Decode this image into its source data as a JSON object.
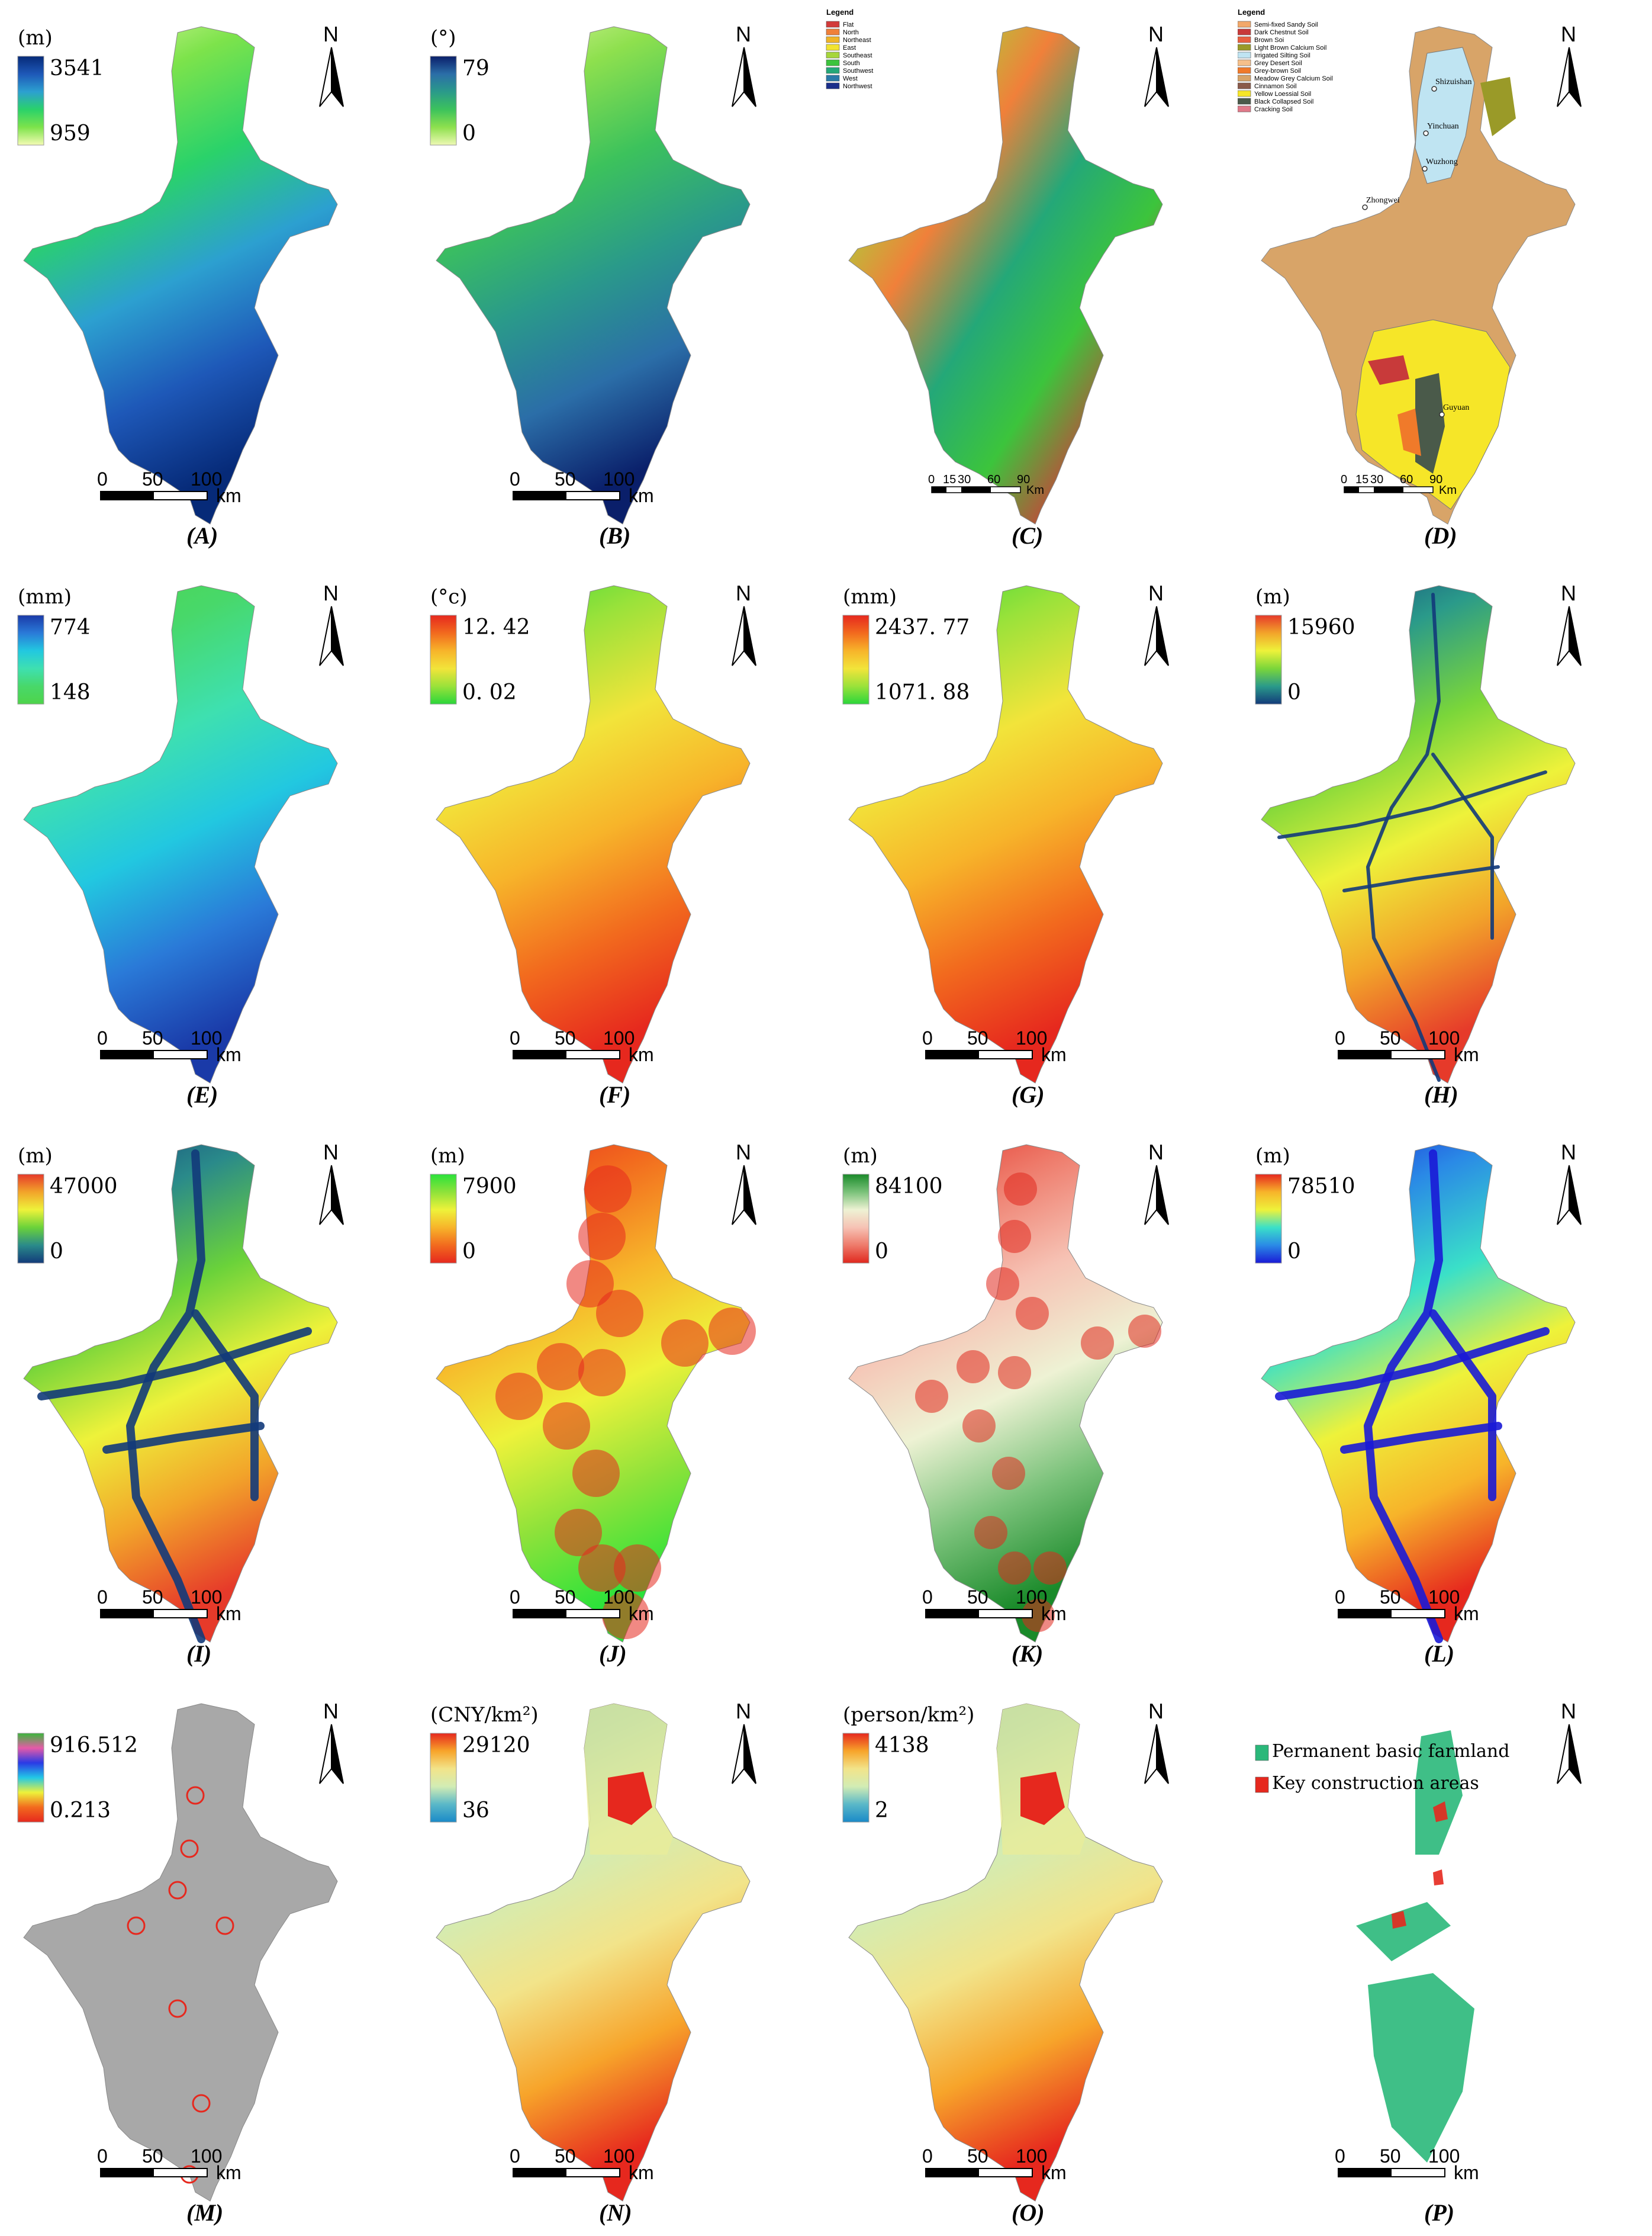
{
  "north_label": "N",
  "scale_km": "km",
  "scale_km_cap": "Km",
  "scale_ticks_a": [
    "0",
    "50",
    "100"
  ],
  "scale_ticks_b": [
    "0",
    "15",
    "30",
    "60",
    "90"
  ],
  "colors": {
    "text": "#000000",
    "boundary": "#777777"
  },
  "panels": [
    {
      "id": "A",
      "label": "(A)",
      "unit": "(m)",
      "max": "3541",
      "min": "959",
      "stops": [
        "#062a78",
        "#1e58b8",
        "#2ca0d0",
        "#2ad26a",
        "#7de34b",
        "#f4fbb4"
      ]
    },
    {
      "id": "B",
      "label": "(B)",
      "unit": "(°)",
      "max": "79",
      "min": "0",
      "stops": [
        "#0a1f6a",
        "#2b6ea8",
        "#2a9a8a",
        "#3cc25c",
        "#8ee04e",
        "#eef9b4"
      ]
    },
    {
      "id": "C",
      "label": "(C)",
      "legend_title": "Legend",
      "legend": [
        {
          "name": "Flat",
          "color": "#d23a3a"
        },
        {
          "name": "North",
          "color": "#f0803a"
        },
        {
          "name": "Northeast",
          "color": "#f0b428"
        },
        {
          "name": "East",
          "color": "#f2e430"
        },
        {
          "name": "Southeast",
          "color": "#a6d63a"
        },
        {
          "name": "South",
          "color": "#3cc43c"
        },
        {
          "name": "Southwest",
          "color": "#24a878"
        },
        {
          "name": "West",
          "color": "#2a7aa8"
        },
        {
          "name": "Northwest",
          "color": "#1a2e8a"
        }
      ]
    },
    {
      "id": "D",
      "label": "(D)",
      "legend_title": "Legend",
      "legend": [
        {
          "name": "Semi-fixed Sandy Soil",
          "color": "#f2a86a"
        },
        {
          "name": "Dark Chestnut Soil",
          "color": "#c83a3a"
        },
        {
          "name": "Brown Soi",
          "color": "#e86040"
        },
        {
          "name": "Light Brown Calcium Soil",
          "color": "#9a9a28"
        },
        {
          "name": "Irrigated Silting Soil",
          "color": "#bfe4f2"
        },
        {
          "name": "Grey Desert Soil",
          "color": "#f6c08a"
        },
        {
          "name": "Grey-brown Soil",
          "color": "#f07a2a"
        },
        {
          "name": "Meadow Grey Calcium Soil",
          "color": "#d8a468"
        },
        {
          "name": "Cinnamon Soil",
          "color": "#8a5a4a"
        },
        {
          "name": "Yellow Loessial Soil",
          "color": "#f6e628"
        },
        {
          "name": "Black Collapsed Soil",
          "color": "#4a5a4a"
        },
        {
          "name": "Cracking Soil",
          "color": "#e07a8a"
        }
      ],
      "cities": [
        "Shizuishan",
        "Yinchuan",
        "Wuzhong",
        "Zhongwei",
        "Guyuan"
      ]
    },
    {
      "id": "E",
      "label": "(E)",
      "unit": "(mm)",
      "max": "774",
      "min": "148",
      "stops": [
        "#1a3aa8",
        "#2a7ad8",
        "#22c8e0",
        "#3ee0b0",
        "#48d86a",
        "#4ed44a"
      ]
    },
    {
      "id": "F",
      "label": "(F)",
      "unit": "(°c)",
      "max": "12. 42",
      "min": "0. 02",
      "stops": [
        "#e6281e",
        "#f26a1e",
        "#f7b42a",
        "#f2e43a",
        "#9ae23a",
        "#2ad63a"
      ]
    },
    {
      "id": "G",
      "label": "(G)",
      "unit": "(mm)",
      "max": "2437. 77",
      "min": "1071. 88",
      "stops": [
        "#e6281e",
        "#f26a1e",
        "#f7b42a",
        "#f2e43a",
        "#9ae23a",
        "#2ad63a"
      ]
    },
    {
      "id": "H",
      "label": "(H)",
      "unit": "(m)",
      "max": "15960",
      "min": "0",
      "stops": [
        "#e63a2a",
        "#f2a42a",
        "#eef23a",
        "#7ad63a",
        "#2a9a8a",
        "#123a7a"
      ]
    },
    {
      "id": "I",
      "label": "(I)",
      "unit": "(m)",
      "max": "47000",
      "min": "0",
      "stops": [
        "#e63a2a",
        "#f2a42a",
        "#eef23a",
        "#6ad23a",
        "#2a8a8a",
        "#123a7a"
      ]
    },
    {
      "id": "J",
      "label": "(J)",
      "unit": "(m)",
      "max": "7900",
      "min": "0",
      "stops": [
        "#2ae23a",
        "#8ee23a",
        "#eef23a",
        "#f7b42a",
        "#f26a1e",
        "#e6281e"
      ]
    },
    {
      "id": "K",
      "label": "(K)",
      "unit": "(m)",
      "max": "84100",
      "min": "0",
      "stops": [
        "#1a8a2a",
        "#7ac27a",
        "#eef2d4",
        "#f6c2b4",
        "#ee7a6a",
        "#e0281e"
      ]
    },
    {
      "id": "L",
      "label": "(L)",
      "unit": "(m)",
      "max": "78510",
      "min": "0",
      "stops": [
        "#e6281e",
        "#f7b42a",
        "#eef23a",
        "#3ae0c8",
        "#2a8ae6",
        "#1a1ad6"
      ]
    },
    {
      "id": "M",
      "label": "(M)",
      "unit": "",
      "max": "916.512",
      "min": "0.213",
      "stops": [
        "#3ab83a",
        "#e65aa8",
        "#2a3ae6",
        "#22c8e6",
        "#eef23a",
        "#f26a1e",
        "#e6281e"
      ]
    },
    {
      "id": "N",
      "label": "(N)",
      "unit": "(CNY/km²)",
      "max": "29120",
      "min": "36",
      "stops": [
        "#e6281e",
        "#f7a42a",
        "#f2e48a",
        "#d2ecb4",
        "#5ab8c8",
        "#1a8ac8"
      ]
    },
    {
      "id": "O",
      "label": "(O)",
      "unit": "(person/km²)",
      "max": "4138",
      "min": "2",
      "stops": [
        "#e6281e",
        "#f7a42a",
        "#f2e48a",
        "#d2ecb4",
        "#5ab8c8",
        "#1a8ac8"
      ]
    },
    {
      "id": "P",
      "label": "(P)",
      "legend": [
        {
          "name": "Permanent basic farmland",
          "color": "#2ab87a"
        },
        {
          "name": "Key construction areas",
          "color": "#e6281e"
        }
      ]
    }
  ]
}
